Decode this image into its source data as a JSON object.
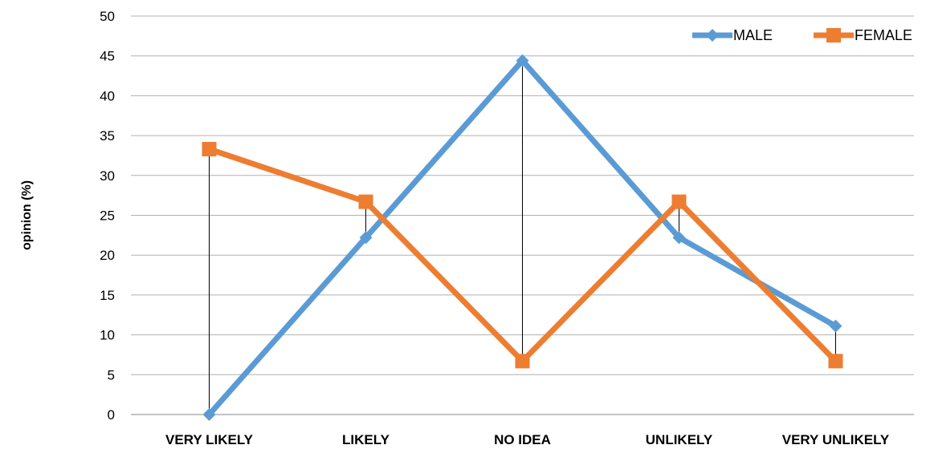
{
  "chart_data": {
    "type": "line",
    "categories": [
      "VERY LIKELY",
      "LIKELY",
      "NO IDEA",
      "UNLIKELY",
      "VERY UNLIKELY"
    ],
    "series": [
      {
        "name": "MALE",
        "values": [
          0,
          22.2,
          44.4,
          22.2,
          11.1
        ],
        "color": "#5B9BD5",
        "marker": "diamond"
      },
      {
        "name": "FEMALE",
        "values": [
          33.3,
          26.7,
          6.7,
          26.7,
          6.7
        ],
        "color": "#ED7D31",
        "marker": "square"
      }
    ],
    "ylabel": "opinion (%)",
    "ylim": [
      0,
      50
    ],
    "yticks": [
      0,
      5,
      10,
      15,
      20,
      25,
      30,
      35,
      40,
      45,
      50
    ],
    "grid": true,
    "drop_lines": true,
    "legend_position": "top-right"
  }
}
